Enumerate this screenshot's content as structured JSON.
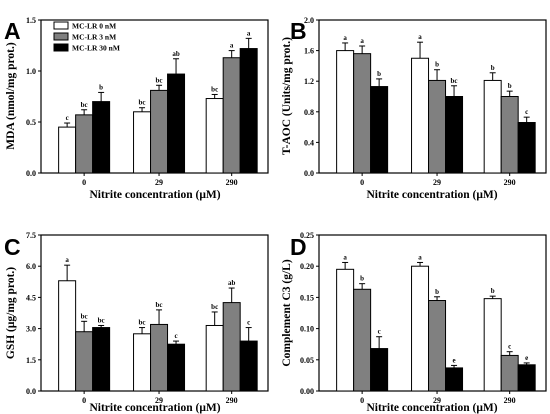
{
  "figure": {
    "legend": [
      {
        "name": "MC-LR 0 nM",
        "color": "#ffffff"
      },
      {
        "name": "MC-LR 3 nM",
        "color": "#808080"
      },
      {
        "name": "MC-LR 30 nM",
        "color": "#000000"
      }
    ]
  },
  "chart_data": [
    {
      "panel": "A",
      "type": "bar",
      "xlabel": "Nitrite concentration (μM)",
      "ylabel": "MDA (nmol/mg prot.)",
      "categories": [
        "0",
        "29",
        "290"
      ],
      "ylim": [
        0,
        1.5
      ],
      "yticks": [
        0.0,
        0.5,
        1.0,
        1.5
      ],
      "ytick_labels": [
        "0.0",
        "0.5",
        "1.0",
        "1.5"
      ],
      "series": [
        {
          "name": "MC-LR 0 nM",
          "values": [
            0.45,
            0.6,
            0.73
          ],
          "errors": [
            0.04,
            0.04,
            0.04
          ],
          "labels": [
            "c",
            "bc",
            "bc"
          ]
        },
        {
          "name": "MC-LR 3 nM",
          "values": [
            0.57,
            0.81,
            1.13
          ],
          "errors": [
            0.05,
            0.05,
            0.07
          ],
          "labels": [
            "bc",
            "bc",
            "a"
          ]
        },
        {
          "name": "MC-LR 30 nM",
          "values": [
            0.7,
            0.97,
            1.22
          ],
          "errors": [
            0.09,
            0.15,
            0.1
          ],
          "labels": [
            "b",
            "ab",
            "a"
          ]
        }
      ]
    },
    {
      "panel": "B",
      "type": "bar",
      "xlabel": "Nitrite concentration (μM)",
      "ylabel": "T-AOC (Units/mg prot.)",
      "categories": [
        "0",
        "29",
        "290"
      ],
      "ylim": [
        0,
        2.0
      ],
      "yticks": [
        0.0,
        0.4,
        0.8,
        1.2,
        1.6,
        2.0
      ],
      "ytick_labels": [
        "0.0",
        "0.4",
        "0.8",
        "1.2",
        "1.6",
        "2.0"
      ],
      "series": [
        {
          "name": "MC-LR 0 nM",
          "values": [
            1.6,
            1.5,
            1.21
          ],
          "errors": [
            0.1,
            0.21,
            0.1
          ],
          "labels": [
            "a",
            "a",
            "b"
          ]
        },
        {
          "name": "MC-LR 3 nM",
          "values": [
            1.56,
            1.21,
            1.0
          ],
          "errors": [
            0.1,
            0.14,
            0.07
          ],
          "labels": [
            "a",
            "b",
            "b"
          ]
        },
        {
          "name": "MC-LR 30 nM",
          "values": [
            1.13,
            1.0,
            0.66
          ],
          "errors": [
            0.1,
            0.14,
            0.07
          ],
          "labels": [
            "b",
            "bc",
            "c"
          ]
        }
      ]
    },
    {
      "panel": "C",
      "type": "bar",
      "xlabel": "Nitrite concentration (μM)",
      "ylabel": "GSH (μg/mg prot.)",
      "categories": [
        "0",
        "29",
        "290"
      ],
      "ylim": [
        0,
        7.5
      ],
      "yticks": [
        0.0,
        1.5,
        3.0,
        4.5,
        6.0,
        7.5
      ],
      "ytick_labels": [
        "0.0",
        "1.5",
        "3.0",
        "4.5",
        "6.0",
        "7.5"
      ],
      "series": [
        {
          "name": "MC-LR 0 nM",
          "values": [
            5.3,
            2.75,
            3.15
          ],
          "errors": [
            0.75,
            0.3,
            0.65
          ],
          "labels": [
            "a",
            "bc",
            "bc"
          ]
        },
        {
          "name": "MC-LR 3 nM",
          "values": [
            2.85,
            3.2,
            4.25
          ],
          "errors": [
            0.5,
            0.7,
            0.7
          ],
          "labels": [
            "bc",
            "bc",
            "ab"
          ]
        },
        {
          "name": "MC-LR 30 nM",
          "values": [
            3.05,
            2.25,
            2.4
          ],
          "errors": [
            0.1,
            0.15,
            0.65
          ],
          "labels": [
            "bc",
            "c",
            "c"
          ]
        }
      ]
    },
    {
      "panel": "D",
      "type": "bar",
      "xlabel": "Nitrite concentration (μM)",
      "ylabel": "Complement C3 (g/L)",
      "categories": [
        "0",
        "29",
        "290"
      ],
      "ylim": [
        0,
        0.25
      ],
      "yticks": [
        0.0,
        0.05,
        0.1,
        0.15,
        0.2,
        0.25
      ],
      "ytick_labels": [
        "0.00",
        "0.05",
        "0.10",
        "0.15",
        "0.20",
        "0.25"
      ],
      "series": [
        {
          "name": "MC-LR 0 nM",
          "values": [
            0.195,
            0.2,
            0.148
          ],
          "errors": [
            0.011,
            0.006,
            0.004
          ],
          "labels": [
            "a",
            "a",
            "b"
          ]
        },
        {
          "name": "MC-LR 3 nM",
          "values": [
            0.163,
            0.145,
            0.057
          ],
          "errors": [
            0.009,
            0.006,
            0.006
          ],
          "labels": [
            "b",
            "b",
            "c"
          ]
        },
        {
          "name": "MC-LR 30 nM",
          "values": [
            0.068,
            0.037,
            0.042
          ],
          "errors": [
            0.019,
            0.004,
            0.003
          ],
          "labels": [
            "c",
            "e",
            "e"
          ]
        }
      ]
    }
  ]
}
